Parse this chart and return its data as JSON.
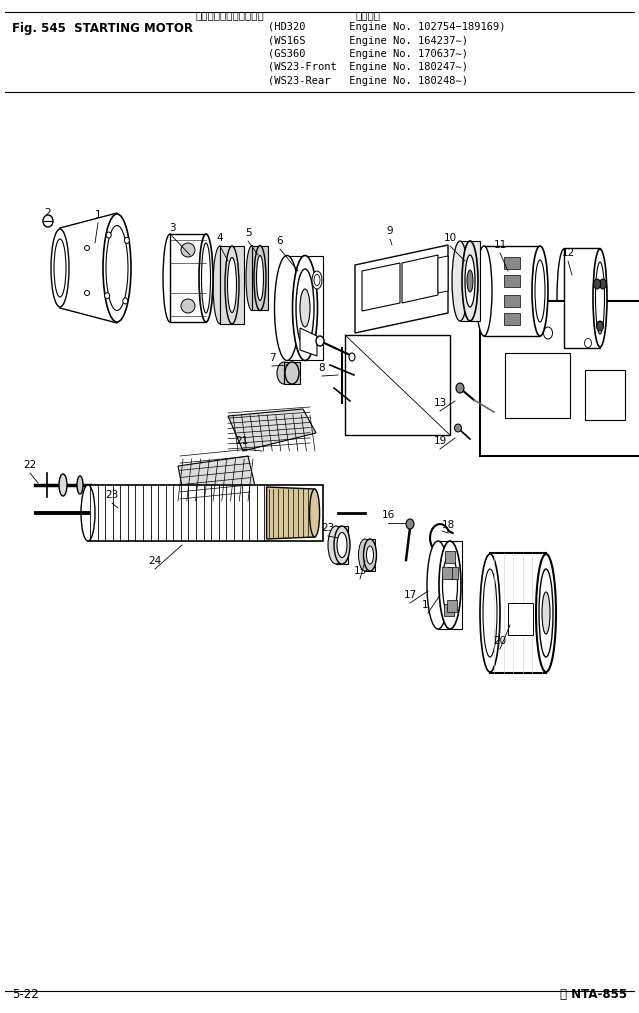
{
  "title_japanese": "スターティング　モータ",
  "title_english": "Fig. 545  STARTING MOTOR",
  "applicability_label": "適用号機",
  "header_lines": [
    "(HD320       Engine No. 102754−189169)",
    "(WS16S       Engine No. 164237∼)",
    "(GS360       Engine No. 170637∼)",
    "(WS23-Front  Engine No. 180247∼)",
    "(WS23-Rear   Engine No. 180248∼)"
  ],
  "footer_left": "5-22",
  "footer_right": "Ⓑ NTA-855",
  "bg_color": "#ffffff",
  "fig_width": 6.39,
  "fig_height": 10.13,
  "dpi": 100
}
